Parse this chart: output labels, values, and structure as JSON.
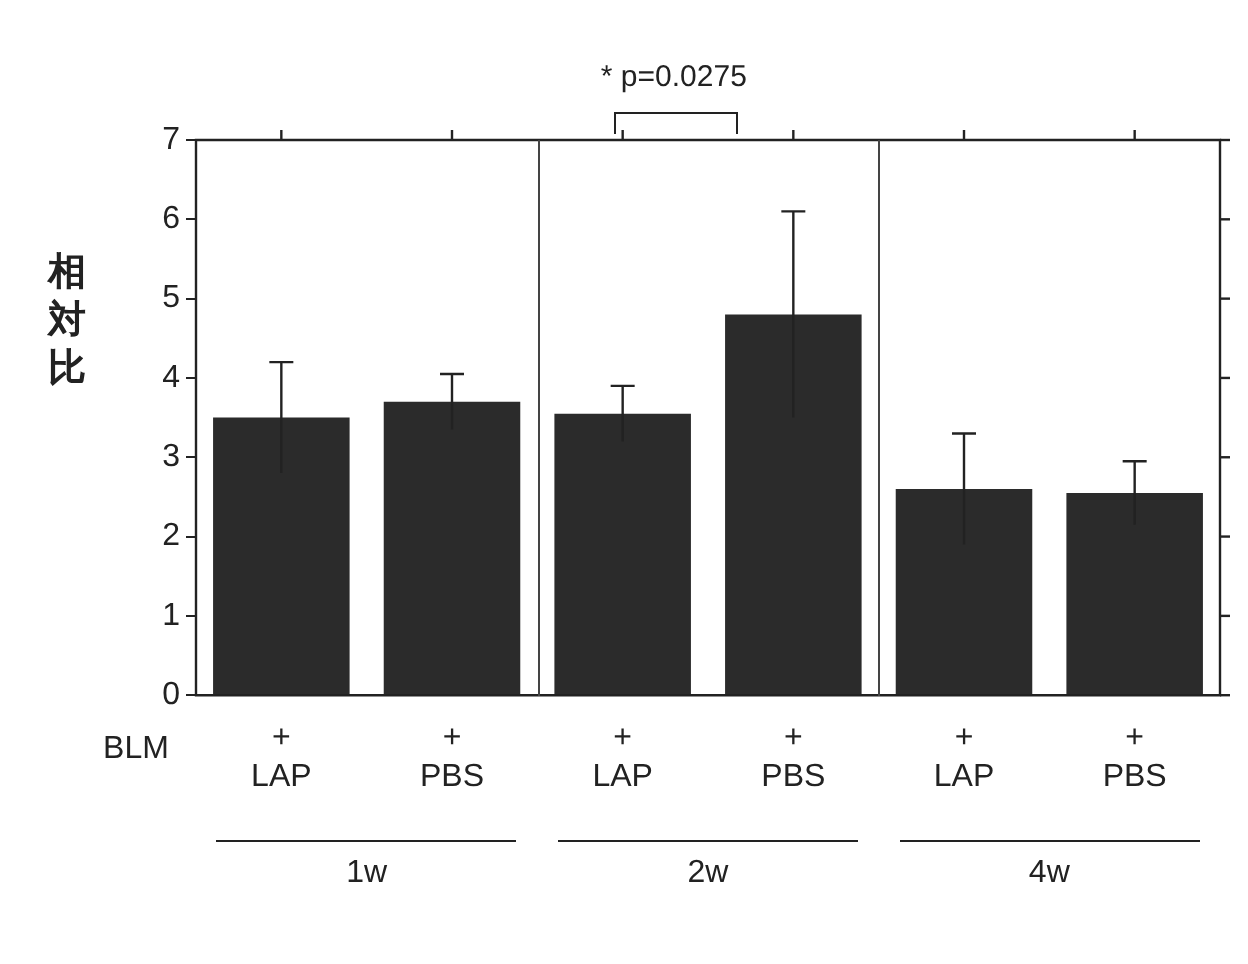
{
  "chart_data": {
    "type": "bar",
    "ylabel": "相対比",
    "categories": [
      "+\nLAP",
      "+\nPBS",
      "+\nLAP",
      "+\nPBS",
      "+\nLAP",
      "+\nPBS"
    ],
    "values": [
      3.5,
      3.7,
      3.55,
      4.8,
      2.6,
      2.55
    ],
    "errors": [
      0.7,
      0.35,
      0.35,
      1.3,
      0.7,
      0.4
    ],
    "color": "#2b2b2b",
    "ylim": [
      0,
      7
    ],
    "yticks": [
      0,
      1,
      2,
      3,
      4,
      5,
      6,
      7
    ],
    "grid": false,
    "legend": false,
    "annotations": [
      "* p=0.0275",
      "BLM",
      "1w",
      "2w",
      "4w"
    ]
  }
}
